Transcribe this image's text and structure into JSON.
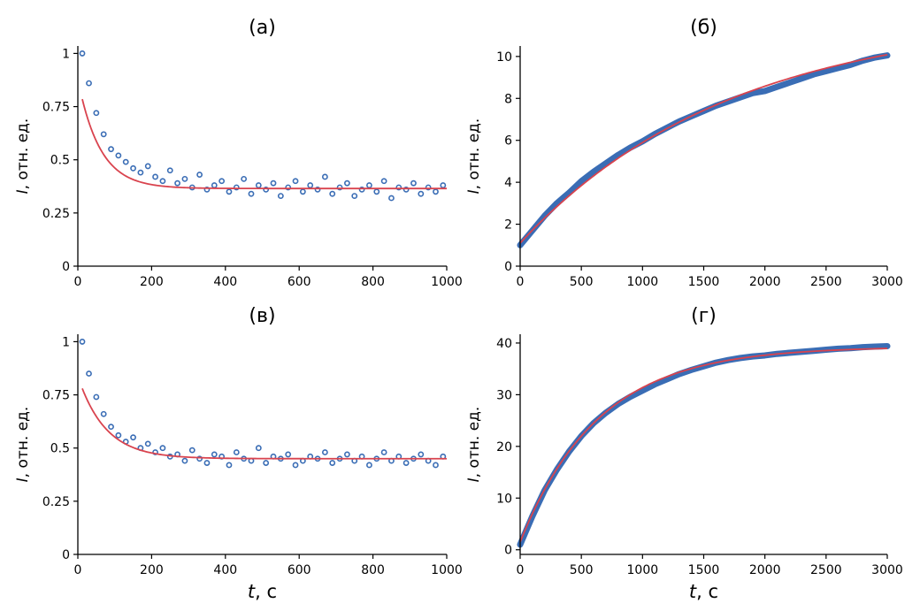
{
  "chart_data": [
    {
      "panel": "(а)",
      "type": "scatter",
      "title": "(а)",
      "ylabel_symbol": "I",
      "ylabel_rest": ", отн. ед.",
      "xlabel_symbol": "",
      "xlabel_rest": "",
      "xlim": [
        0,
        1000
      ],
      "ylim": [
        0,
        1.035
      ],
      "xticks": [
        0,
        200,
        400,
        600,
        800,
        1000
      ],
      "xtick_labels": [
        "0",
        "200",
        "400",
        "600",
        "800",
        "1000"
      ],
      "yticks": [
        0,
        0.25,
        0.5,
        0.75,
        1
      ],
      "ytick_labels": [
        "0",
        "0.25",
        "0.5",
        "0.75",
        "1"
      ],
      "grid": false,
      "marker": "hollow-circle",
      "x": [
        12,
        30,
        50,
        70,
        90,
        110,
        130,
        150,
        170,
        190,
        210,
        230,
        250,
        270,
        290,
        310,
        330,
        350,
        370,
        390,
        410,
        430,
        450,
        470,
        490,
        510,
        530,
        550,
        570,
        590,
        610,
        630,
        650,
        670,
        690,
        710,
        730,
        750,
        770,
        790,
        810,
        830,
        850,
        870,
        890,
        910,
        930,
        950,
        970,
        990
      ],
      "y": [
        1.0,
        0.86,
        0.72,
        0.62,
        0.55,
        0.52,
        0.49,
        0.46,
        0.44,
        0.47,
        0.42,
        0.4,
        0.45,
        0.39,
        0.41,
        0.37,
        0.43,
        0.36,
        0.38,
        0.4,
        0.35,
        0.37,
        0.41,
        0.34,
        0.38,
        0.36,
        0.39,
        0.33,
        0.37,
        0.4,
        0.35,
        0.38,
        0.36,
        0.42,
        0.34,
        0.37,
        0.39,
        0.33,
        0.36,
        0.38,
        0.35,
        0.4,
        0.32,
        0.37,
        0.36,
        0.39,
        0.34,
        0.37,
        0.35,
        0.38
      ],
      "fit": {
        "model": "decay",
        "y0": 0.365,
        "A": 0.42,
        "t0": 12,
        "tau": 60
      }
    },
    {
      "panel": "(б)",
      "type": "scatter",
      "title": "(б)",
      "ylabel_symbol": "I",
      "ylabel_rest": ", отн. ед.",
      "xlabel_symbol": "",
      "xlabel_rest": "",
      "xlim": [
        0,
        3000
      ],
      "ylim": [
        0,
        10.5
      ],
      "xticks": [
        0,
        500,
        1000,
        1500,
        2000,
        2500,
        3000
      ],
      "xtick_labels": [
        "0",
        "500",
        "1000",
        "1500",
        "2000",
        "2500",
        "3000"
      ],
      "yticks": [
        0,
        2,
        4,
        6,
        8,
        10
      ],
      "ytick_labels": [
        "0",
        "2",
        "4",
        "6",
        "8",
        "10"
      ],
      "grid": false,
      "marker": "dense",
      "x": [
        0,
        100,
        200,
        300,
        400,
        500,
        600,
        700,
        800,
        900,
        1000,
        1100,
        1200,
        1300,
        1400,
        1500,
        1600,
        1700,
        1800,
        1900,
        2000,
        2100,
        2200,
        2300,
        2400,
        2500,
        2600,
        2700,
        2800,
        2900,
        3000
      ],
      "y": [
        1.0,
        1.7,
        2.4,
        3.0,
        3.5,
        4.05,
        4.5,
        4.9,
        5.3,
        5.65,
        5.95,
        6.3,
        6.6,
        6.9,
        7.15,
        7.4,
        7.65,
        7.85,
        8.05,
        8.25,
        8.35,
        8.55,
        8.75,
        8.95,
        9.15,
        9.3,
        9.45,
        9.6,
        9.8,
        9.95,
        10.05
      ],
      "fit": {
        "model": "rise",
        "y0": 12.0,
        "A": 10.9,
        "t0": 0,
        "tau": 1725
      }
    },
    {
      "panel": "(в)",
      "type": "scatter",
      "title": "(в)",
      "ylabel_symbol": "I",
      "ylabel_rest": ", отн. ед.",
      "xlabel_symbol": "t",
      "xlabel_rest": ", с",
      "xlim": [
        0,
        1000
      ],
      "ylim": [
        0,
        1.035
      ],
      "xticks": [
        0,
        200,
        400,
        600,
        800,
        1000
      ],
      "xtick_labels": [
        "0",
        "200",
        "400",
        "600",
        "800",
        "1000"
      ],
      "yticks": [
        0,
        0.25,
        0.5,
        0.75,
        1
      ],
      "ytick_labels": [
        "0",
        "0.25",
        "0.5",
        "0.75",
        "1"
      ],
      "grid": false,
      "marker": "hollow-circle",
      "x": [
        12,
        30,
        50,
        70,
        90,
        110,
        130,
        150,
        170,
        190,
        210,
        230,
        250,
        270,
        290,
        310,
        330,
        350,
        370,
        390,
        410,
        430,
        450,
        470,
        490,
        510,
        530,
        550,
        570,
        590,
        610,
        630,
        650,
        670,
        690,
        710,
        730,
        750,
        770,
        790,
        810,
        830,
        850,
        870,
        890,
        910,
        930,
        950,
        970,
        990
      ],
      "y": [
        1.0,
        0.85,
        0.74,
        0.66,
        0.6,
        0.56,
        0.53,
        0.55,
        0.5,
        0.52,
        0.48,
        0.5,
        0.46,
        0.47,
        0.44,
        0.49,
        0.45,
        0.43,
        0.47,
        0.46,
        0.42,
        0.48,
        0.45,
        0.44,
        0.5,
        0.43,
        0.46,
        0.45,
        0.47,
        0.42,
        0.44,
        0.46,
        0.45,
        0.48,
        0.43,
        0.45,
        0.47,
        0.44,
        0.46,
        0.42,
        0.45,
        0.48,
        0.44,
        0.46,
        0.43,
        0.45,
        0.47,
        0.44,
        0.42,
        0.46
      ],
      "fit": {
        "model": "decay",
        "y0": 0.45,
        "A": 0.33,
        "t0": 12,
        "tau": 75
      }
    },
    {
      "panel": "(г)",
      "type": "scatter",
      "title": "(г)",
      "ylabel_symbol": "I",
      "ylabel_rest": ", отн. ед.",
      "xlabel_symbol": "t",
      "xlabel_rest": ", с",
      "xlim": [
        0,
        3000
      ],
      "ylim": [
        -0.9,
        41.7
      ],
      "xticks": [
        0,
        500,
        1000,
        1500,
        2000,
        2500,
        3000
      ],
      "xtick_labels": [
        "0",
        "500",
        "1000",
        "1500",
        "2000",
        "2500",
        "3000"
      ],
      "yticks": [
        0,
        10,
        20,
        30,
        40
      ],
      "ytick_labels": [
        "0",
        "10",
        "20",
        "30",
        "40"
      ],
      "grid": false,
      "marker": "dense",
      "x": [
        0,
        100,
        200,
        300,
        400,
        500,
        600,
        700,
        800,
        900,
        1000,
        1100,
        1200,
        1300,
        1400,
        1500,
        1600,
        1700,
        1800,
        1900,
        2000,
        2100,
        2200,
        2300,
        2400,
        2500,
        2600,
        2700,
        2800,
        2900,
        3000
      ],
      "y": [
        1.0,
        6.5,
        11.5,
        15.5,
        19,
        22,
        24.5,
        26.5,
        28.2,
        29.6,
        30.8,
        32,
        33,
        34,
        34.8,
        35.5,
        36.2,
        36.7,
        37.1,
        37.4,
        37.6,
        37.9,
        38.1,
        38.3,
        38.5,
        38.7,
        38.9,
        39.0,
        39.2,
        39.3,
        39.4
      ],
      "fit": {
        "model": "rise",
        "y0": 39.3,
        "A": 37.8,
        "t0": 0,
        "tau": 640
      }
    }
  ],
  "colors": {
    "data": "#3a6db5",
    "fit": "#d9434e",
    "axis": "#000000"
  }
}
